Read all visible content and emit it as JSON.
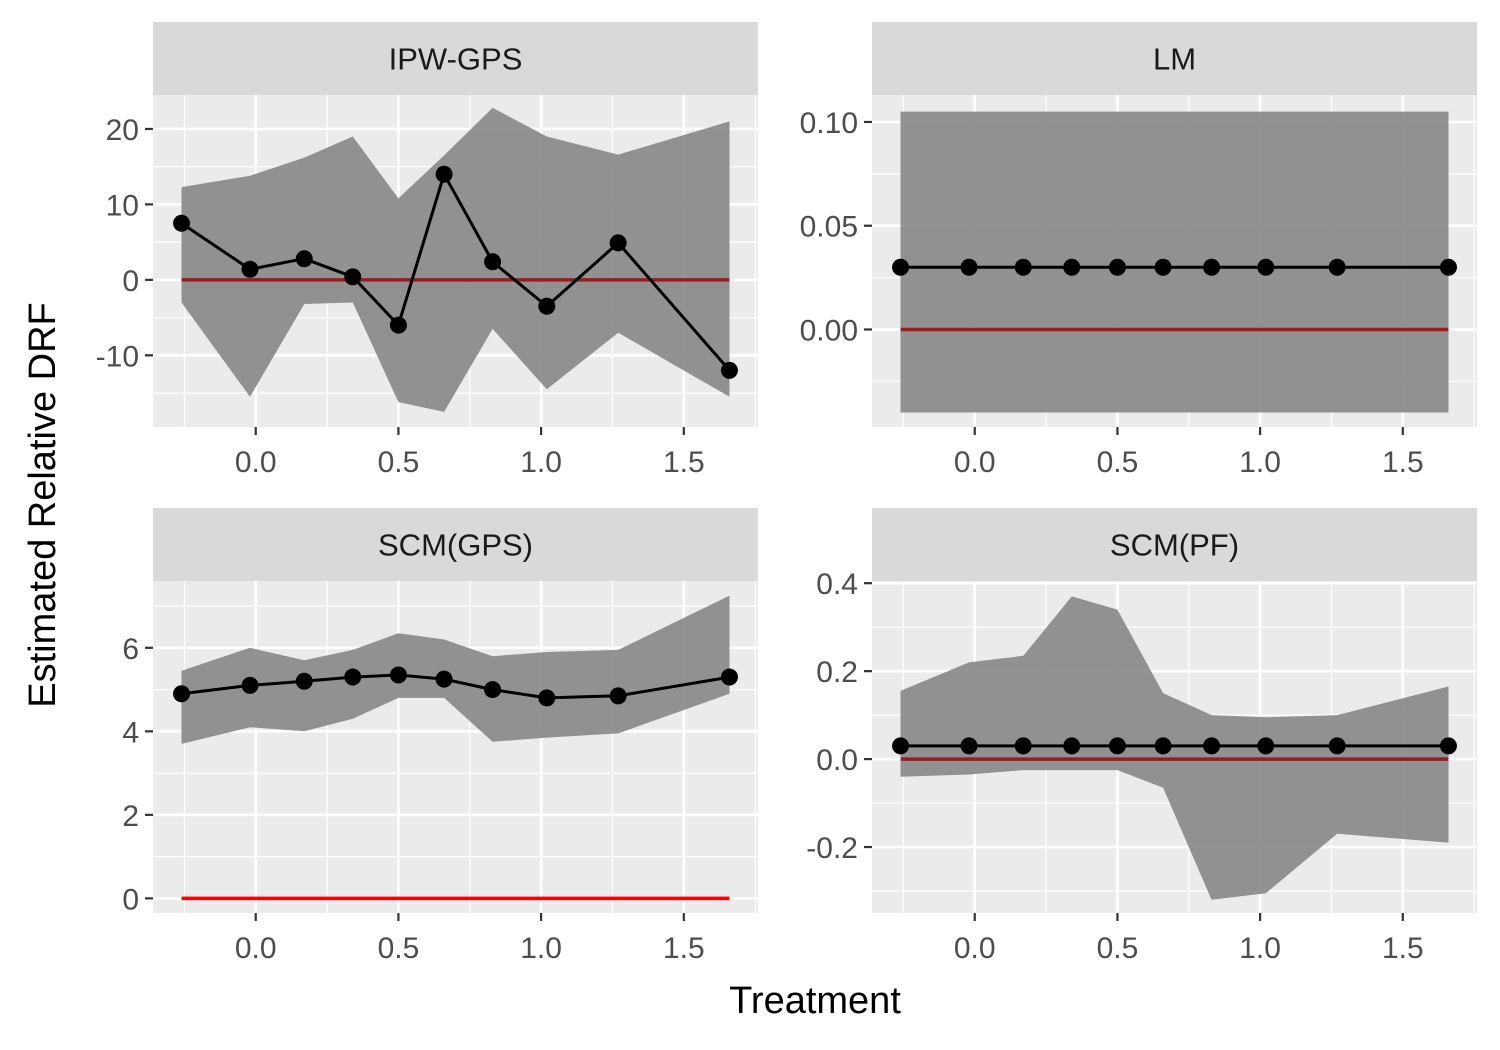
{
  "figure": {
    "xlabel": "Treatment",
    "ylabel": "Estimated Relative DRF"
  },
  "colors": {
    "panel_bg": "#ebebeb",
    "strip_bg": "#d9d9d9",
    "grid": "#ffffff",
    "ribbon": "#8c8c8c",
    "line": "#000000",
    "ref_line_dark": "#9b1c1c",
    "ref_line_bright": "#ff0000"
  },
  "chart_data": [
    {
      "type": "line",
      "title": "IPW-GPS",
      "x": [
        -0.26,
        -0.02,
        0.17,
        0.34,
        0.5,
        0.66,
        0.83,
        1.02,
        1.27,
        1.66
      ],
      "y": [
        7.5,
        1.4,
        2.8,
        0.4,
        -6.0,
        14.0,
        2.4,
        -3.5,
        4.9,
        -12.0
      ],
      "lower": [
        -3.0,
        -15.5,
        -3.2,
        -3.0,
        -16.2,
        -17.5,
        -6.5,
        -14.5,
        -7.0,
        -15.5
      ],
      "upper": [
        12.3,
        13.8,
        16.2,
        19.0,
        10.8,
        16.5,
        22.8,
        19.0,
        16.6,
        21.0
      ],
      "ref_line": 0,
      "ref_color": "#9b1c1c",
      "xlim": [
        -0.36,
        1.76
      ],
      "ylim": [
        -19.5,
        24.5
      ],
      "yticks": [
        -10,
        0,
        10,
        20
      ],
      "yticklabels": [
        "-10",
        "0",
        "10",
        "20"
      ],
      "xticks": [
        0.0,
        0.5,
        1.0,
        1.5
      ],
      "xticklabels": [
        "0.0",
        "0.5",
        "1.0",
        "1.5"
      ]
    },
    {
      "type": "line",
      "title": "LM",
      "x": [
        -0.26,
        -0.02,
        0.17,
        0.34,
        0.5,
        0.66,
        0.83,
        1.02,
        1.27,
        1.66
      ],
      "y": [
        0.03,
        0.03,
        0.03,
        0.03,
        0.03,
        0.03,
        0.03,
        0.03,
        0.03,
        0.03
      ],
      "lower": [
        -0.04,
        -0.04,
        -0.04,
        -0.04,
        -0.04,
        -0.04,
        -0.04,
        -0.04,
        -0.04,
        -0.04
      ],
      "upper": [
        0.105,
        0.105,
        0.105,
        0.105,
        0.105,
        0.105,
        0.105,
        0.105,
        0.105,
        0.105
      ],
      "ref_line": 0,
      "ref_color": "#9b1c1c",
      "xlim": [
        -0.36,
        1.76
      ],
      "ylim": [
        -0.047,
        0.113
      ],
      "yticks": [
        0.0,
        0.05,
        0.1
      ],
      "yticklabels": [
        "0.00",
        "0.05",
        "0.10"
      ],
      "xticks": [
        0.0,
        0.5,
        1.0,
        1.5
      ],
      "xticklabels": [
        "0.0",
        "0.5",
        "1.0",
        "1.5"
      ]
    },
    {
      "type": "line",
      "title": "SCM(GPS)",
      "x": [
        -0.26,
        -0.02,
        0.17,
        0.34,
        0.5,
        0.66,
        0.83,
        1.02,
        1.27,
        1.66
      ],
      "y": [
        4.9,
        5.1,
        5.2,
        5.3,
        5.35,
        5.25,
        5.0,
        4.8,
        4.85,
        5.3
      ],
      "lower": [
        3.7,
        4.1,
        4.0,
        4.3,
        4.8,
        4.8,
        3.75,
        3.85,
        3.95,
        4.9
      ],
      "upper": [
        5.45,
        6.0,
        5.7,
        5.95,
        6.35,
        6.2,
        5.8,
        5.9,
        5.95,
        7.25
      ],
      "ref_line": 0,
      "ref_color": "#ff0000",
      "xlim": [
        -0.36,
        1.76
      ],
      "ylim": [
        -0.35,
        7.6
      ],
      "yticks": [
        0,
        2,
        4,
        6
      ],
      "yticklabels": [
        "0",
        "2",
        "4",
        "6"
      ],
      "xticks": [
        0.0,
        0.5,
        1.0,
        1.5
      ],
      "xticklabels": [
        "0.0",
        "0.5",
        "1.0",
        "1.5"
      ]
    },
    {
      "type": "line",
      "title": "SCM(PF)",
      "x": [
        -0.26,
        -0.02,
        0.17,
        0.34,
        0.5,
        0.66,
        0.83,
        1.02,
        1.27,
        1.66
      ],
      "y": [
        0.03,
        0.03,
        0.03,
        0.03,
        0.03,
        0.03,
        0.03,
        0.03,
        0.03,
        0.03
      ],
      "lower": [
        -0.04,
        -0.035,
        -0.025,
        -0.025,
        -0.025,
        -0.065,
        -0.32,
        -0.305,
        -0.17,
        -0.19
      ],
      "upper": [
        0.155,
        0.22,
        0.235,
        0.37,
        0.34,
        0.15,
        0.1,
        0.095,
        0.1,
        0.165
      ],
      "ref_line": 0,
      "ref_color": "#9b1c1c",
      "xlim": [
        -0.36,
        1.76
      ],
      "ylim": [
        -0.35,
        0.405
      ],
      "yticks": [
        -0.2,
        0.0,
        0.2,
        0.4
      ],
      "yticklabels": [
        "-0.2",
        "0.0",
        "0.2",
        "0.4"
      ],
      "xticks": [
        0.0,
        0.5,
        1.0,
        1.5
      ],
      "xticklabels": [
        "0.0",
        "0.5",
        "1.0",
        "1.5"
      ]
    }
  ]
}
